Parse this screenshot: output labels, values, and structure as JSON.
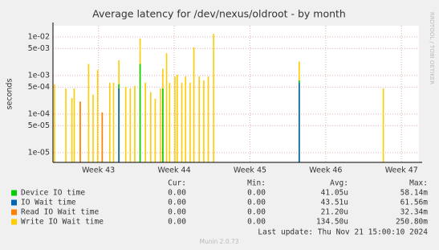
{
  "chart_data": {
    "type": "impulse",
    "title": "Average latency for /dev/nexus/oldroot - by month",
    "y_label": "seconds",
    "side_label": "RRDTOOL / TOBI OETIKER",
    "ylog": true,
    "grid": true,
    "ylim": [
      5.6e-06,
      0.0195
    ],
    "yticks": [
      {
        "value": 1e-05,
        "label": "1e-05"
      },
      {
        "value": 5e-05,
        "label": "5e-05"
      },
      {
        "value": 0.0001,
        "label": "1e-04"
      },
      {
        "value": 0.0005,
        "label": "5e-04"
      },
      {
        "value": 0.001,
        "label": "1e-03"
      },
      {
        "value": 0.005,
        "label": "5e-03"
      },
      {
        "value": 0.01,
        "label": "1e-02"
      }
    ],
    "xlim": [
      42.4,
      47.23
    ],
    "xticks": [
      {
        "value": 43,
        "label": "Week 43"
      },
      {
        "value": 44,
        "label": "Week 44"
      },
      {
        "value": 45,
        "label": "Week 45"
      },
      {
        "value": 46,
        "label": "Week 46"
      },
      {
        "value": 47,
        "label": "Week 47"
      }
    ],
    "x": [
      42.42,
      42.57,
      42.65,
      42.68,
      42.76,
      42.87,
      42.93,
      42.99,
      43.05,
      43.15,
      43.2,
      43.27,
      43.36,
      43.42,
      43.48,
      43.55,
      43.62,
      43.69,
      43.75,
      43.82,
      43.85,
      43.9,
      43.94,
      44.01,
      44.04,
      44.1,
      44.15,
      44.21,
      44.26,
      44.33,
      44.39,
      44.45,
      44.52,
      45.65,
      46.76
    ],
    "series": [
      {
        "name": "Device IO time",
        "color": "#00cc00",
        "values": [
          null,
          null,
          null,
          null,
          null,
          null,
          null,
          null,
          null,
          null,
          null,
          0.00059,
          null,
          null,
          null,
          0.002,
          null,
          null,
          null,
          null,
          0.00046,
          null,
          null,
          null,
          null,
          null,
          null,
          null,
          null,
          null,
          null,
          null,
          null,
          0.00075,
          null
        ]
      },
      {
        "name": "IO Wait time",
        "color": "#0066b3",
        "values": [
          null,
          null,
          null,
          null,
          null,
          null,
          null,
          null,
          null,
          null,
          null,
          0.00046,
          null,
          null,
          null,
          null,
          null,
          null,
          null,
          null,
          null,
          null,
          null,
          null,
          null,
          null,
          null,
          null,
          null,
          null,
          null,
          null,
          null,
          0.00065,
          null
        ]
      },
      {
        "name": "Read IO Wait time",
        "color": "#ff8000",
        "values": [
          null,
          null,
          null,
          null,
          0.00021,
          null,
          null,
          null,
          0.00011,
          null,
          null,
          null,
          null,
          null,
          null,
          null,
          null,
          null,
          null,
          null,
          null,
          null,
          null,
          null,
          null,
          null,
          null,
          null,
          null,
          null,
          null,
          null,
          null,
          null,
          null
        ]
      },
      {
        "name": "Write IO Wait time",
        "color": "#ffcc00",
        "values": [
          0.00059,
          0.00046,
          0.00026,
          0.00046,
          0.00021,
          0.002,
          0.00032,
          0.0014,
          0.00011,
          0.00065,
          0.00065,
          0.0025,
          0.00051,
          0.00046,
          0.00054,
          0.0091,
          0.00065,
          0.00037,
          0.00025,
          0.00046,
          0.0015,
          0.0038,
          0.00065,
          0.00095,
          0.00105,
          0.00065,
          0.00095,
          0.00065,
          0.0054,
          0.00095,
          0.00075,
          0.00095,
          0.012,
          0.0023,
          0.00046
        ]
      }
    ],
    "legend_table": {
      "headers": [
        "Cur:",
        "Min:",
        "Avg:",
        "Max:"
      ],
      "rows": [
        [
          "0.00",
          "0.00",
          "41.05u",
          "58.14m"
        ],
        [
          "0.00",
          "0.00",
          "43.51u",
          "61.56m"
        ],
        [
          "0.00",
          "0.00",
          "21.20u",
          "32.34m"
        ],
        [
          "0.00",
          "0.00",
          "134.50u",
          "250.80m"
        ]
      ]
    },
    "last_update": "Last update: Thu Nov 21 15:00:10 2024",
    "footer": "Munin 2.0.73"
  }
}
